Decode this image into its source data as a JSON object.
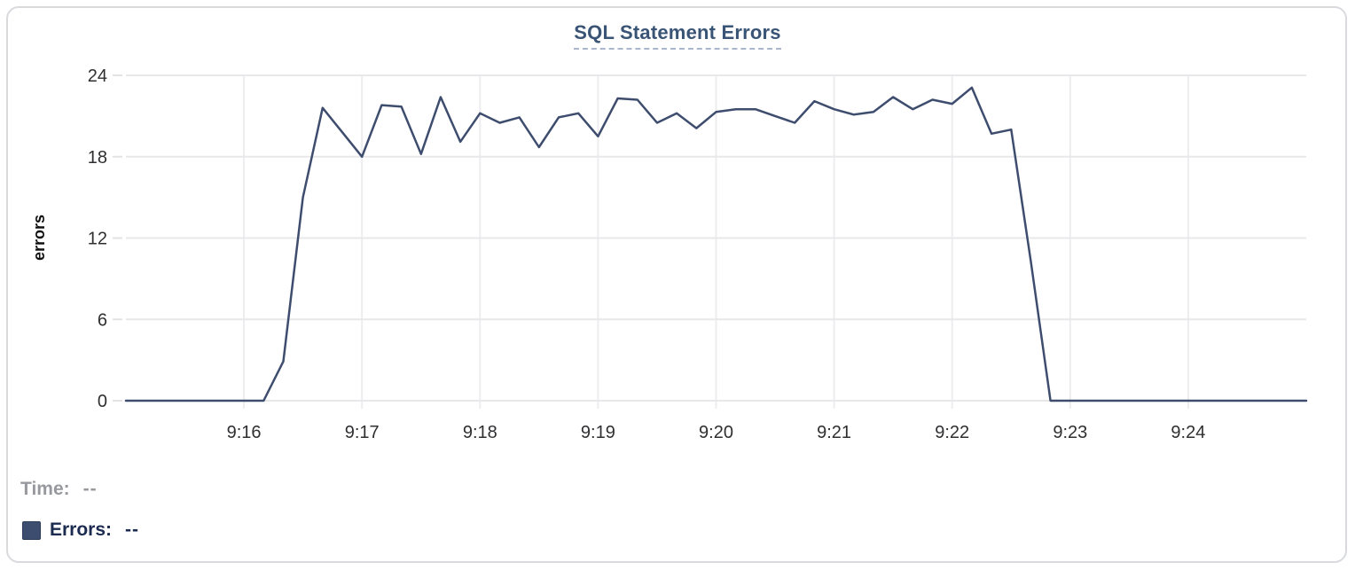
{
  "legend": {
    "time_label": "Time:",
    "time_value": "--",
    "errors_label": "Errors:",
    "errors_value": "--",
    "swatch_color": "#3d4d6f"
  },
  "colors": {
    "line": "#3e4d6e",
    "title": "#3a5476",
    "title_underline": "#a9b6cc",
    "grid_horizontal": "#e8e8ea",
    "grid_vertical": "#ededef",
    "tick_mark": "#e3e3e5",
    "tick_text": "#2f2f31",
    "time_text": "#97999e",
    "errors_text": "#1c2b50",
    "card_border": "#d9dadd",
    "background": "#ffffff"
  },
  "chart_data": {
    "type": "line",
    "title": "SQL Statement Errors",
    "xlabel": "",
    "ylabel": "errors",
    "ylim": [
      0,
      24
    ],
    "y_ticks": [
      0,
      6,
      12,
      18,
      24
    ],
    "x_start": "9:15:00",
    "x_end": "9:25:00",
    "interval_seconds": 10,
    "grid": true,
    "legend_position": "bottom-left",
    "x_ticks": [
      {
        "label": "9:16",
        "sec": 60
      },
      {
        "label": "9:17",
        "sec": 120
      },
      {
        "label": "9:18",
        "sec": 180
      },
      {
        "label": "9:19",
        "sec": 240
      },
      {
        "label": "9:20",
        "sec": 300
      },
      {
        "label": "9:21",
        "sec": 360
      },
      {
        "label": "9:22",
        "sec": 420
      },
      {
        "label": "9:23",
        "sec": 480
      },
      {
        "label": "9:24",
        "sec": 540
      }
    ],
    "series": [
      {
        "name": "Errors",
        "color": "#3e4d6e",
        "values": [
          0,
          0,
          0,
          0,
          0,
          0,
          0,
          0,
          2.9,
          15,
          21.6,
          19.8,
          18,
          21.8,
          21.7,
          18.2,
          22.4,
          19.1,
          21.2,
          20.5,
          20.9,
          18.7,
          20.9,
          21.2,
          19.5,
          22.3,
          22.2,
          20.5,
          21.2,
          20.1,
          21.3,
          21.5,
          21.5,
          21,
          20.5,
          22.1,
          21.5,
          21.1,
          21.3,
          22.4,
          21.5,
          22.2,
          21.9,
          23.1,
          19.7,
          20,
          10.3,
          0,
          0,
          0,
          0,
          0,
          0,
          0,
          0,
          0,
          0,
          0,
          0,
          0,
          0
        ]
      }
    ]
  }
}
